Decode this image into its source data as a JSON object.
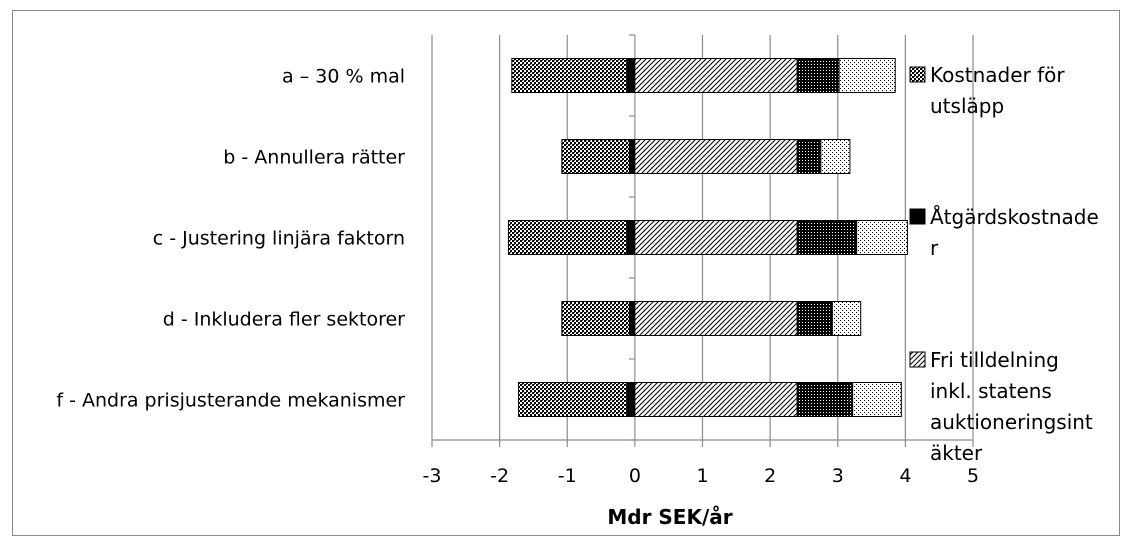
{
  "chart_data": {
    "type": "bar",
    "orientation": "horizontal",
    "stacked": true,
    "xlabel": "Mdr SEK/år",
    "xlim": [
      -3,
      5
    ],
    "xticks": [
      "-3",
      "-2",
      "-1",
      "0",
      "1",
      "2",
      "3",
      "4",
      "5"
    ],
    "categories": [
      "a – 30 % mal",
      "b - Annullera rätter",
      "c - Justering linjära faktorn",
      "d - Inkludera fler sektorer",
      "f - Andra prisjusterande mekanismer"
    ],
    "negative_series": [
      {
        "name": "Åtgärdskostnader",
        "pattern": "solid",
        "values": [
          -0.12,
          -0.08,
          -0.12,
          -0.08,
          -0.12
        ]
      },
      {
        "name": "Kostnader för utsläpp",
        "pattern": "crosshatch",
        "values": [
          -1.7,
          -1.0,
          -1.75,
          -1.0,
          -1.6
        ]
      }
    ],
    "positive_series": [
      {
        "name": "Fri tilldelning inkl. statens auktioneringsintäkter",
        "pattern": "diagonal",
        "values": [
          2.4,
          2.4,
          2.4,
          2.4,
          2.4
        ]
      },
      {
        "name": "",
        "pattern": "dense-cross",
        "values": [
          0.62,
          0.35,
          0.88,
          0.52,
          0.82
        ]
      },
      {
        "name": "",
        "pattern": "dots",
        "values": [
          0.83,
          0.43,
          0.75,
          0.42,
          0.72
        ]
      }
    ],
    "legend": {
      "placement": "right",
      "entries": [
        {
          "text": "Kostnader för utsläpp",
          "pattern": "crosshatch"
        },
        {
          "text": "Åtgärdskostnader",
          "pattern": "solid"
        },
        {
          "text": "Fri tilldelning inkl. statens auktioneringsintäkter",
          "pattern": "diagonal"
        }
      ],
      "lines": [
        [
          "Kostnader för",
          "utsläpp"
        ],
        [
          "Åtgärdskostnade",
          "r"
        ],
        [
          "Fri tilldelning",
          "inkl. statens",
          "auktioneringsint",
          "äkter"
        ]
      ]
    },
    "grid": "vertical"
  }
}
